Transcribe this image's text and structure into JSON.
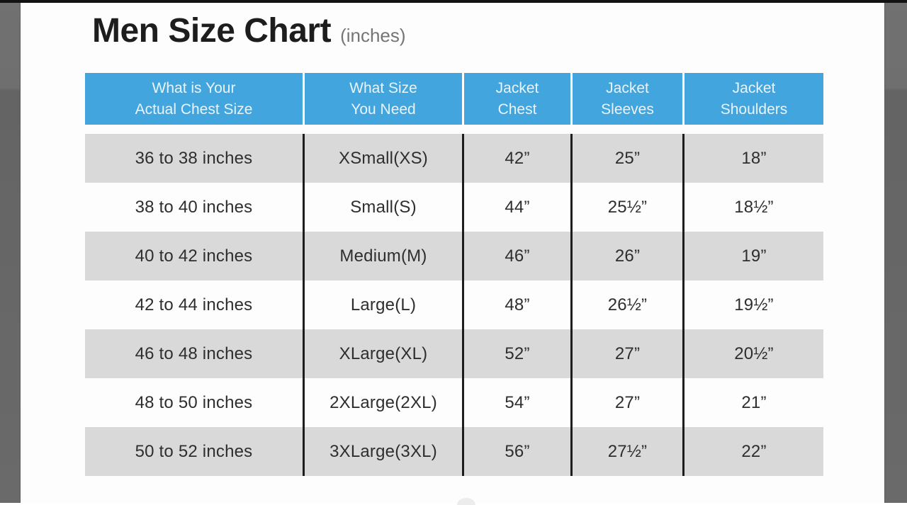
{
  "page": {
    "title": "Men Size Chart",
    "title_note": "(inches)"
  },
  "header_columns": [
    {
      "line1": "What is Your",
      "line2": "Actual Chest Size"
    },
    {
      "line1": "What Size",
      "line2": "You Need"
    },
    {
      "line1": "Jacket",
      "line2": "Chest"
    },
    {
      "line1": "Jacket",
      "line2": "Sleeves"
    },
    {
      "line1": "Jacket",
      "line2": "Shoulders"
    }
  ],
  "chart_data": {
    "type": "table",
    "title": "Men Size Chart",
    "unit_note": "(inches)",
    "columns": [
      "What is Your Actual Chest Size",
      "What Size You Need",
      "Jacket Chest",
      "Jacket Sleeves",
      "Jacket Shoulders"
    ],
    "rows": [
      [
        "36 to 38 inches",
        "XSmall(XS)",
        "42”",
        "25”",
        "18”"
      ],
      [
        "38 to 40 inches",
        "Small(S)",
        "44”",
        "25½”",
        "18½”"
      ],
      [
        "40 to 42 inches",
        "Medium(M)",
        "46”",
        "26”",
        "19”"
      ],
      [
        "42 to 44 inches",
        "Large(L)",
        "48”",
        "26½”",
        "19½”"
      ],
      [
        "46 to 48 inches",
        "XLarge(XL)",
        "52”",
        "27”",
        "20½”"
      ],
      [
        "48 to 50 inches",
        "2XLarge(2XL)",
        "54”",
        "27”",
        "21”"
      ],
      [
        "50 to 52 inches",
        "3XLarge(3XL)",
        "56”",
        "27½”",
        "22”"
      ]
    ]
  },
  "colors": {
    "header_bg": "#42a5de",
    "header_text": "#e8f4fb",
    "row_alt_bg": "#d9d9d9",
    "divider_line": "#1d1d1d",
    "side_bar": "#6a6a6a",
    "top_strip": "#121212",
    "body_text": "#2e2e2e",
    "title_text": "#1d1d1d",
    "title_note_text": "#757575"
  }
}
